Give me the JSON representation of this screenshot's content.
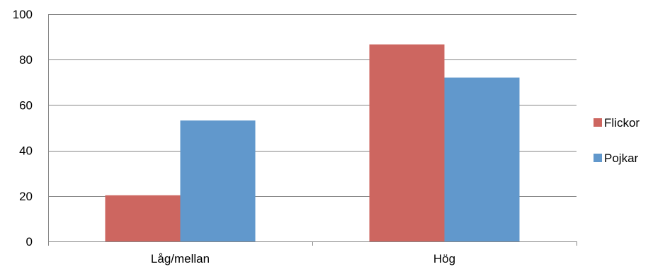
{
  "chart_data": {
    "type": "bar",
    "categories": [
      "Låg/mellan",
      "Hög"
    ],
    "series": [
      {
        "name": "Flickor",
        "values": [
          20.3,
          86.7
        ],
        "color": "#CD6660"
      },
      {
        "name": "Pojkar",
        "values": [
          53.2,
          72.1
        ],
        "color": "#6198CC"
      }
    ],
    "title": "",
    "xlabel": "",
    "ylabel": "",
    "ylim": [
      0,
      100
    ],
    "yticks": [
      0,
      20,
      40,
      60,
      80,
      100
    ],
    "grid": true,
    "legend_position": "right"
  }
}
